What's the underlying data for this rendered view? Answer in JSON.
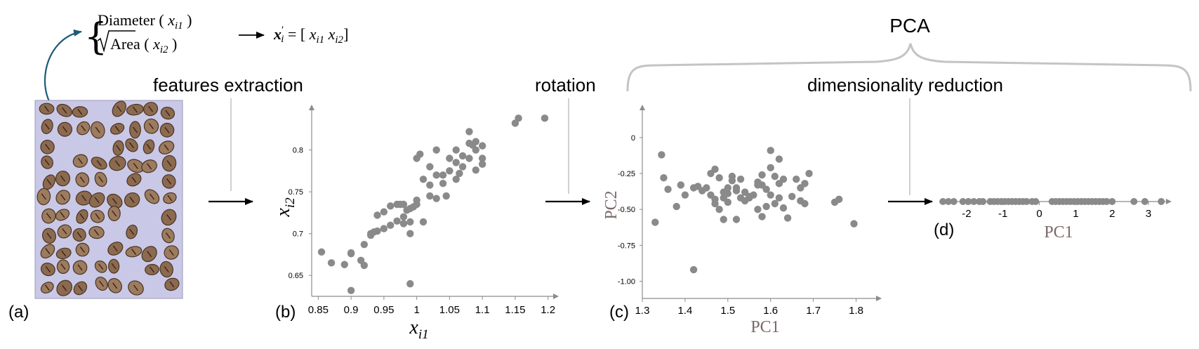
{
  "formula": {
    "feature1": "Diameter",
    "feature1_sym": "x",
    "feature1_sub": "i1",
    "feature2": "Area",
    "feature2_sym": "x",
    "feature2_sub": "i2",
    "vec_sym": "x",
    "vec_prime": "′",
    "vec_sub": "i",
    "vec_rhs_1_sym": "x",
    "vec_rhs_1_sub": "i1",
    "vec_rhs_2_sym": "x",
    "vec_rhs_2_sub": "i2"
  },
  "labels": {
    "pca": "PCA",
    "features_extraction": "features extraction",
    "rotation": "rotation",
    "dimensionality_reduction": "dimensionality reduction",
    "panel_a": "(a)",
    "panel_b": "(b)",
    "panel_c": "(c)",
    "panel_d": "(d)"
  },
  "colors": {
    "point": "#8a8a8a",
    "axis": "#8c8c8c",
    "arrow_curve": "#1f5a7a",
    "brace": "#c4c4c4",
    "pc_label": "#7a6a6a",
    "photo_bg": "#c9c8e6",
    "bean": "#8b6a4f"
  },
  "chart_data": [
    {
      "type": "scatter",
      "panel": "(b)",
      "xlabel_sym": "x",
      "xlabel_sub": "i1",
      "ylabel_sym": "x",
      "ylabel_sub": "i2",
      "xlim": [
        0.84,
        1.21
      ],
      "ylim": [
        0.625,
        0.845
      ],
      "xticks": [
        "0.85",
        "0.9",
        "0.95",
        "1",
        "1.05",
        "1.1",
        "1.15",
        "1.2"
      ],
      "xtick_values": [
        0.85,
        0.9,
        0.95,
        1.0,
        1.05,
        1.1,
        1.15,
        1.2
      ],
      "yticks": [
        "0.65",
        "0.7",
        "0.75",
        "0.8"
      ],
      "ytick_values": [
        0.65,
        0.7,
        0.75,
        0.8
      ],
      "x": [
        0.855,
        0.87,
        0.89,
        0.9,
        0.9,
        0.92,
        0.92,
        0.93,
        0.94,
        0.95,
        0.96,
        0.97,
        0.98,
        0.98,
        0.99,
        0.99,
        1.0,
        1.0,
        1.01,
        1.02,
        1.02,
        1.03,
        1.03,
        1.04,
        1.05,
        1.05,
        1.06,
        1.06,
        1.07,
        1.07,
        1.08,
        1.08,
        1.09,
        1.09,
        1.1,
        1.1,
        1.15,
        1.155,
        1.195,
        0.94,
        0.95,
        0.97,
        0.98,
        0.99,
        1.0,
        1.01,
        1.02,
        1.03,
        1.04,
        1.06,
        1.08,
        1.09,
        0.93,
        0.96,
        0.975,
        0.985,
        0.995,
        0.9,
        0.915,
        0.935,
        0.99,
        1.005,
        1.045,
        1.065,
        1.085,
        1.1
      ],
      "y": [
        0.678,
        0.665,
        0.663,
        0.632,
        0.676,
        0.662,
        0.687,
        0.698,
        0.703,
        0.706,
        0.71,
        0.715,
        0.72,
        0.735,
        0.73,
        0.64,
        0.735,
        0.79,
        0.765,
        0.758,
        0.78,
        0.77,
        0.8,
        0.77,
        0.775,
        0.79,
        0.785,
        0.765,
        0.78,
        0.793,
        0.808,
        0.822,
        0.8,
        0.776,
        0.79,
        0.805,
        0.832,
        0.838,
        0.838,
        0.722,
        0.726,
        0.735,
        0.712,
        0.7,
        0.74,
        0.714,
        0.745,
        0.742,
        0.76,
        0.8,
        0.79,
        0.81,
        0.7,
        0.733,
        0.735,
        0.728,
        0.732,
        0.677,
        0.668,
        0.702,
        0.714,
        0.795,
        0.745,
        0.772,
        0.806,
        0.783
      ]
    },
    {
      "type": "scatter",
      "panel": "(c)",
      "xlabel": "PC1",
      "ylabel": "PC2",
      "xlim": [
        1.3,
        1.85
      ],
      "ylim": [
        -1.12,
        0.2
      ],
      "xticks": [
        "1.3",
        "1.4",
        "1.5",
        "1.6",
        "1.7",
        "1.8"
      ],
      "xtick_values": [
        1.3,
        1.4,
        1.5,
        1.6,
        1.7,
        1.8
      ],
      "yticks": [
        "0",
        "-0.25",
        "-0.50",
        "-0.75",
        "-1.00"
      ],
      "ytick_values": [
        0,
        -0.25,
        -0.5,
        -0.75,
        -1.0
      ],
      "x": [
        1.33,
        1.345,
        1.35,
        1.36,
        1.38,
        1.39,
        1.4,
        1.42,
        1.43,
        1.44,
        1.45,
        1.46,
        1.47,
        1.47,
        1.48,
        1.48,
        1.49,
        1.49,
        1.5,
        1.5,
        1.51,
        1.51,
        1.52,
        1.52,
        1.53,
        1.53,
        1.54,
        1.54,
        1.55,
        1.56,
        1.57,
        1.57,
        1.58,
        1.58,
        1.59,
        1.59,
        1.6,
        1.6,
        1.61,
        1.61,
        1.62,
        1.62,
        1.63,
        1.63,
        1.64,
        1.65,
        1.66,
        1.67,
        1.67,
        1.68,
        1.68,
        1.69,
        1.75,
        1.76,
        1.795,
        1.42,
        1.46,
        1.5,
        1.52,
        1.58,
        1.6,
        1.62,
        1.55,
        1.47,
        1.49,
        1.57
      ],
      "y": [
        -0.59,
        -0.12,
        -0.28,
        -0.36,
        -0.48,
        -0.33,
        -0.4,
        -0.35,
        -0.34,
        -0.37,
        -0.35,
        -0.4,
        -0.22,
        -0.46,
        -0.28,
        -0.5,
        -0.42,
        -0.57,
        -0.35,
        -0.45,
        -0.27,
        -0.3,
        -0.35,
        -0.57,
        -0.29,
        -0.42,
        -0.44,
        -0.38,
        -0.41,
        -0.4,
        -0.5,
        -0.33,
        -0.33,
        -0.55,
        -0.36,
        -0.48,
        -0.09,
        -0.4,
        -0.27,
        -0.46,
        -0.42,
        -0.15,
        -0.49,
        -0.29,
        -0.56,
        -0.41,
        -0.29,
        -0.44,
        -0.35,
        -0.32,
        -0.46,
        -0.25,
        -0.45,
        -0.43,
        -0.6,
        -0.92,
        -0.25,
        -0.39,
        -0.37,
        -0.26,
        -0.21,
        -0.32,
        -0.42,
        -0.43,
        -0.38,
        -0.31
      ]
    },
    {
      "type": "scatter",
      "panel": "(d)",
      "xlabel": "PC1",
      "xlim": [
        -2.75,
        3.5
      ],
      "xticks": [
        "-2",
        "-1",
        "0",
        "1",
        "2",
        "3"
      ],
      "xtick_values": [
        -2,
        -1,
        0,
        1,
        2,
        3
      ],
      "x": [
        -2.65,
        -2.5,
        -2.35,
        -2.1,
        -1.95,
        -1.8,
        -1.65,
        -1.55,
        -1.35,
        -1.25,
        -1.15,
        -1.05,
        -0.95,
        -0.85,
        -0.75,
        -0.65,
        -0.55,
        -0.45,
        -0.35,
        -0.2,
        -0.1,
        0.35,
        0.45,
        0.55,
        0.65,
        0.75,
        0.85,
        0.95,
        1.05,
        1.15,
        1.25,
        1.35,
        1.45,
        1.55,
        1.65,
        1.75,
        1.85,
        2.0,
        2.6,
        2.9,
        3.35
      ]
    }
  ]
}
